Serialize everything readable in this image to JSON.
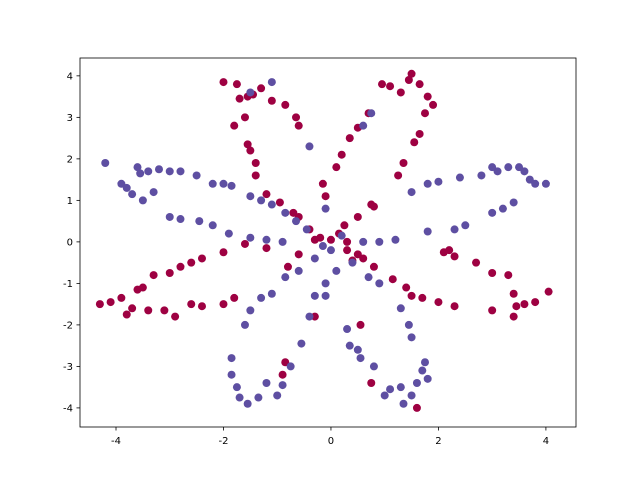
{
  "chart_data": {
    "type": "scatter",
    "xlim": [
      -4.67,
      4.56
    ],
    "ylim": [
      -4.46,
      4.43
    ],
    "xticks": [
      -4,
      -2,
      0,
      2,
      4
    ],
    "yticks": [
      -4,
      -3,
      -2,
      -1,
      0,
      1,
      2,
      3,
      4
    ],
    "series": [
      {
        "color": "#9e0142",
        "x": [
          -2,
          -1.75,
          -1.7,
          -1.55,
          -1.45,
          -1.3,
          -1.1,
          -0.85,
          -0.65,
          -0.6,
          -1.6,
          -1.8,
          -1.55,
          -1.5,
          -1.4,
          -1.4,
          -1.2,
          -0.95,
          -0.7,
          -0.6,
          -0.4,
          -0.2,
          0.1,
          0.2,
          0.35,
          0.5,
          0.7,
          0.95,
          1.1,
          1.3,
          1.45,
          1.5,
          1.65,
          1.8,
          1.9,
          1.75,
          1.65,
          1.55,
          1.35,
          1.25,
          0.75,
          0.5,
          0.25,
          0.15,
          -0.15,
          -0.1,
          -4.3,
          -4.1,
          -3.9,
          -3.8,
          -3.7,
          -3.6,
          -3.5,
          -3.4,
          -3.3,
          -3.1,
          -3.0,
          -2.9,
          -2.8,
          -2.6,
          -2.4,
          -2.6,
          -2.4,
          -2.0,
          -1.8,
          -2.0,
          -1.6,
          -1.2,
          -0.8,
          -0.6,
          -0.9,
          -0.85,
          -0.3,
          0.3,
          0.5,
          0.6,
          0.8,
          1.15,
          1.4,
          1.7,
          2.0,
          2.3,
          2.1,
          2.3,
          2.7,
          3.0,
          3.3,
          3.4,
          3.6,
          3.8,
          4.05,
          3.45,
          3.0,
          3.4,
          0.55,
          0.75,
          1.6,
          0.0,
          0.3,
          -0.3,
          0.8,
          0.4,
          2.2,
          1.5
        ],
        "y": [
          3.85,
          3.8,
          3.45,
          3.5,
          3.55,
          3.7,
          3.4,
          3.3,
          3.0,
          2.8,
          3.0,
          2.8,
          2.35,
          2.2,
          1.9,
          1.6,
          1.15,
          0.95,
          0.7,
          0.6,
          0.3,
          0.1,
          1.8,
          2.1,
          2.5,
          2.75,
          3.1,
          3.8,
          3.75,
          3.6,
          3.9,
          4.05,
          3.8,
          3.5,
          3.3,
          3.1,
          2.6,
          2.4,
          1.9,
          1.6,
          0.9,
          0.6,
          0.4,
          0.2,
          1.4,
          1.1,
          -1.5,
          -1.45,
          -1.35,
          -1.75,
          -1.6,
          -1.15,
          -1.1,
          -1.65,
          -0.8,
          -1.65,
          -0.75,
          -1.8,
          -0.6,
          -0.5,
          -0.4,
          -1.5,
          -1.55,
          -1.5,
          -1.35,
          -0.25,
          -0.05,
          -0.15,
          -0.6,
          -0.3,
          -3.2,
          -2.9,
          -1.8,
          -0.2,
          -0.3,
          -0.4,
          -0.6,
          -0.9,
          -1.1,
          -1.35,
          -1.45,
          -1.55,
          -0.25,
          -0.35,
          -0.5,
          -0.75,
          -0.8,
          -1.25,
          -1.5,
          -1.45,
          -1.2,
          -1.55,
          -1.65,
          -1.8,
          -2.0,
          -3.4,
          -4.0,
          0.05,
          0.0,
          0.05,
          0.85,
          -0.45,
          -0.2,
          -1.3
        ]
      },
      {
        "color": "#5e4fa2",
        "x": [
          -4.2,
          -3.9,
          -3.8,
          -3.7,
          -3.6,
          -3.55,
          -3.5,
          -3.4,
          -3.3,
          -3.2,
          -3.0,
          -2.8,
          -2.5,
          -2.2,
          -2.0,
          -1.85,
          -1.5,
          -1.3,
          -1.1,
          -0.85,
          -0.65,
          -0.45,
          -3.0,
          -2.8,
          -2.45,
          -2.2,
          -1.9,
          -1.5,
          -1.2,
          -0.9,
          4.0,
          3.8,
          3.7,
          3.6,
          3.5,
          3.3,
          3.1,
          3.0,
          2.8,
          2.4,
          2.0,
          1.8,
          1.5,
          3.0,
          3.2,
          3.4,
          2.5,
          2.3,
          1.8,
          1.2,
          0.9,
          0.6,
          -1.85,
          -1.85,
          -1.75,
          -1.7,
          -1.55,
          -1.35,
          -1.2,
          -1.0,
          -0.9,
          -0.75,
          -0.55,
          -0.4,
          -0.3,
          -1.5,
          -1.3,
          -1.1,
          -0.85,
          -1.6,
          -0.6,
          -0.3,
          -1.5,
          -1.1,
          -0.4,
          -0.1,
          0.6,
          0.75,
          0.3,
          0.35,
          0.5,
          0.55,
          0.8,
          1.0,
          1.1,
          1.3,
          1.35,
          1.5,
          1.6,
          1.7,
          1.75,
          1.8,
          1.5,
          1.45,
          1.3,
          0.9,
          0.7,
          0.4,
          -0.1,
          -0.1,
          0.1,
          0.2,
          -0.15,
          0.0
        ],
        "y": [
          1.9,
          1.4,
          1.3,
          1.15,
          1.8,
          1.65,
          1.0,
          1.7,
          1.2,
          1.75,
          1.7,
          1.7,
          1.6,
          1.4,
          1.4,
          1.35,
          1.1,
          1.0,
          0.9,
          0.7,
          0.5,
          0.3,
          0.6,
          0.55,
          0.5,
          0.4,
          0.2,
          0.1,
          0.05,
          0.0,
          1.4,
          1.4,
          1.5,
          1.7,
          1.8,
          1.8,
          1.7,
          1.8,
          1.6,
          1.55,
          1.45,
          1.4,
          1.2,
          0.7,
          0.8,
          0.95,
          0.4,
          0.3,
          0.25,
          0.05,
          0.0,
          0.0,
          -2.8,
          -3.2,
          -3.5,
          -3.75,
          -3.9,
          -3.75,
          -3.4,
          -3.7,
          -3.45,
          -3.0,
          -2.45,
          -1.8,
          -1.3,
          -1.65,
          -1.35,
          -1.25,
          -0.85,
          -2.0,
          -0.7,
          -0.4,
          3.6,
          3.85,
          2.3,
          0.8,
          2.8,
          3.1,
          -2.1,
          -2.5,
          -2.6,
          -2.8,
          -3.0,
          -3.7,
          -3.55,
          -3.5,
          -3.9,
          -3.7,
          -3.4,
          -3.1,
          -2.9,
          -3.3,
          -2.3,
          -2.0,
          -1.6,
          -1.0,
          -0.85,
          -0.5,
          -1.0,
          -1.3,
          -0.7,
          0.15,
          -0.1,
          -0.2
        ]
      }
    ]
  }
}
